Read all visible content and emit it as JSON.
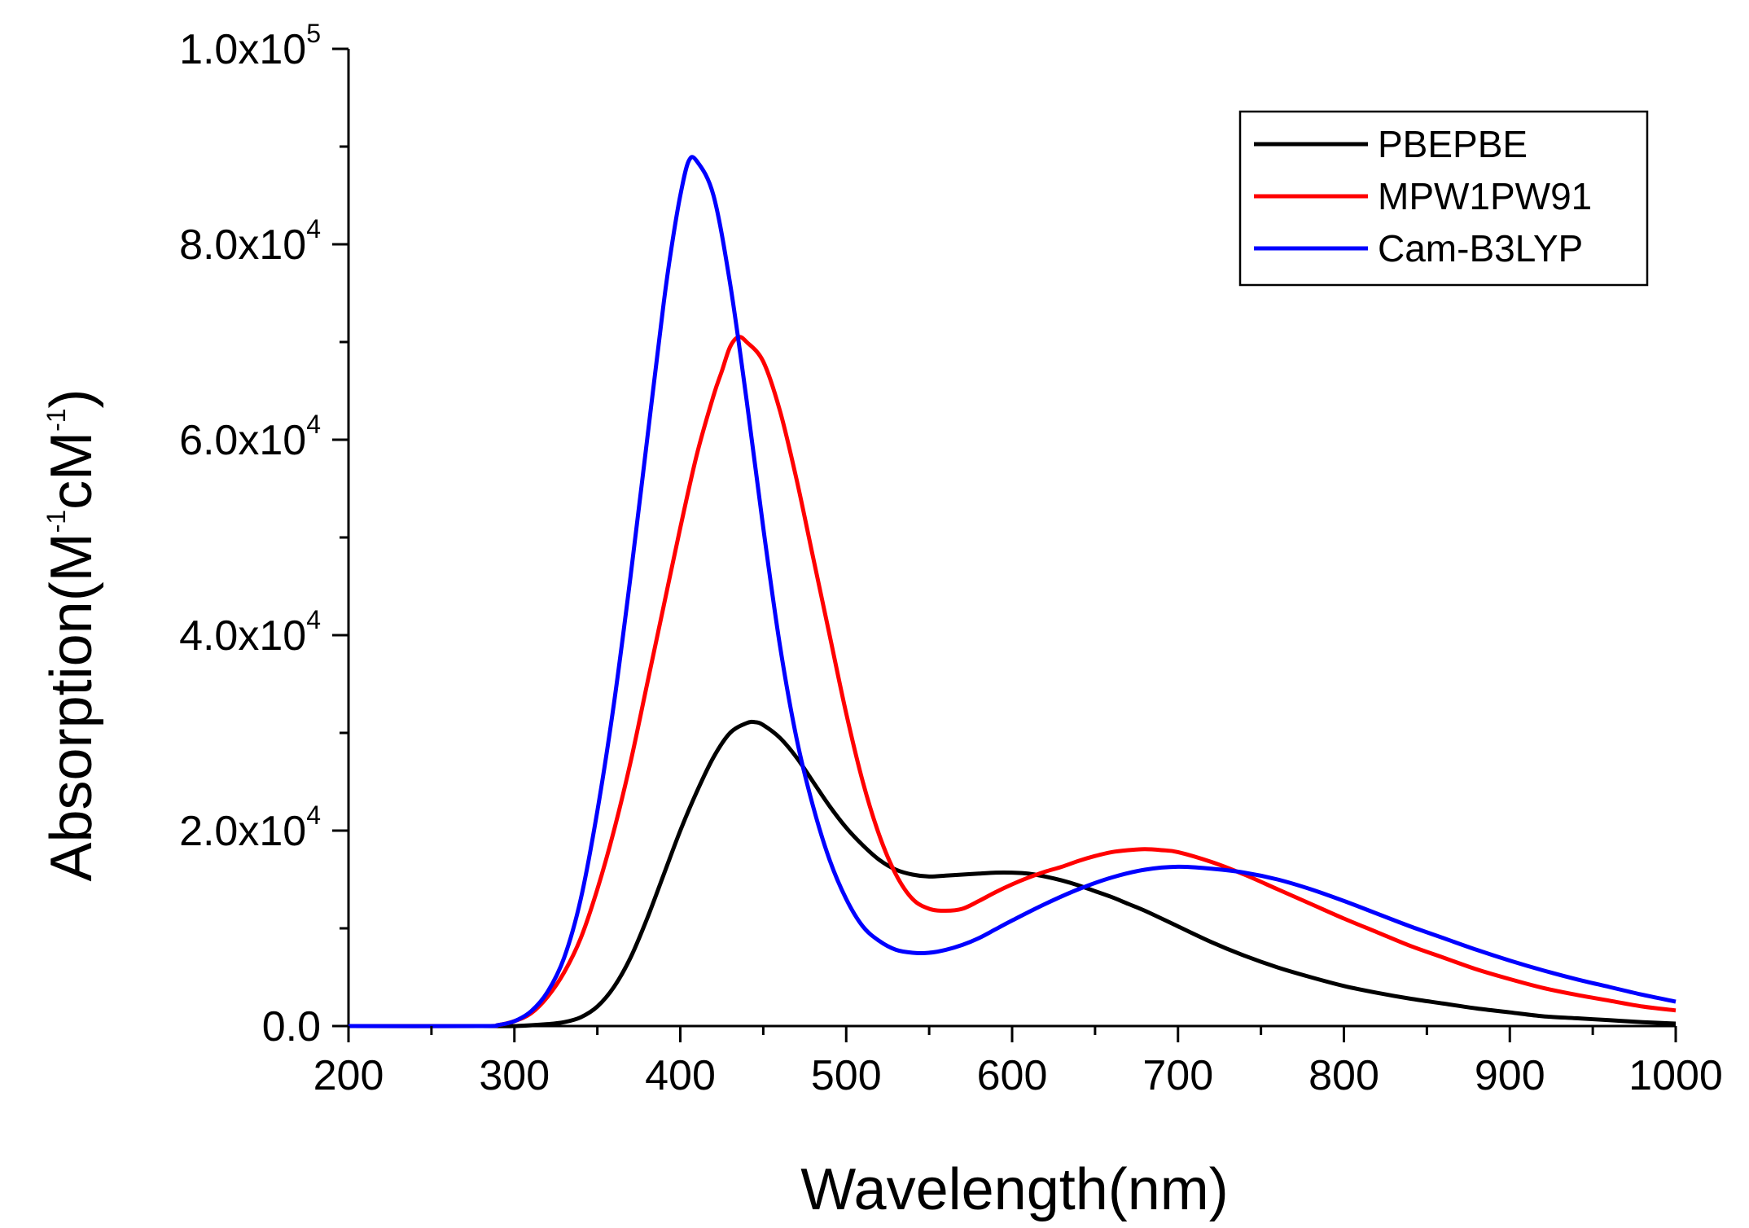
{
  "chart_data": {
    "type": "line",
    "title": "",
    "xlabel": "Wavelength(nm)",
    "ylabel": {
      "base": "Absorption(M",
      "sup1": "-1",
      "mid": "cM",
      "sup2": "-1",
      "end": ")"
    },
    "xlim": [
      200,
      1000
    ],
    "ylim": [
      0,
      100000
    ],
    "x_ticks": [
      "200",
      "300",
      "400",
      "500",
      "600",
      "700",
      "800",
      "900",
      "1000"
    ],
    "y_ticks": [
      {
        "mantissa": "0.0",
        "exp": ""
      },
      {
        "mantissa": "2.0x10",
        "exp": "4"
      },
      {
        "mantissa": "4.0x10",
        "exp": "4"
      },
      {
        "mantissa": "6.0x10",
        "exp": "4"
      },
      {
        "mantissa": "8.0x10",
        "exp": "4"
      },
      {
        "mantissa": "1.0x10",
        "exp": "5"
      }
    ],
    "legend_position": "top-right",
    "series": [
      {
        "name": "PBEPBE",
        "color": "#000000",
        "x": [
          200,
          280,
          300,
          320,
          330,
          340,
          350,
          360,
          370,
          380,
          390,
          400,
          410,
          420,
          430,
          440,
          445,
          450,
          460,
          470,
          480,
          490,
          500,
          510,
          520,
          530,
          540,
          550,
          560,
          570,
          580,
          590,
          600,
          610,
          620,
          630,
          640,
          650,
          660,
          670,
          680,
          700,
          720,
          740,
          760,
          780,
          800,
          820,
          840,
          860,
          880,
          900,
          920,
          940,
          960,
          980,
          1000
        ],
        "values": [
          0,
          0,
          0,
          200,
          400,
          900,
          2000,
          4000,
          7000,
          11000,
          15500,
          20000,
          24000,
          27500,
          30000,
          31000,
          31100,
          30800,
          29500,
          27500,
          25000,
          22500,
          20300,
          18500,
          17000,
          16000,
          15500,
          15300,
          15400,
          15500,
          15600,
          15700,
          15700,
          15600,
          15300,
          14900,
          14400,
          13800,
          13200,
          12500,
          11800,
          10200,
          8600,
          7200,
          6000,
          5000,
          4100,
          3400,
          2800,
          2300,
          1800,
          1400,
          1000,
          800,
          600,
          400,
          250
        ]
      },
      {
        "name": "MPW1PW91",
        "color": "#ff0000",
        "x": [
          200,
          280,
          290,
          300,
          310,
          320,
          330,
          340,
          350,
          360,
          370,
          380,
          390,
          400,
          410,
          420,
          425,
          430,
          435,
          440,
          450,
          460,
          470,
          480,
          490,
          500,
          510,
          520,
          530,
          540,
          550,
          560,
          570,
          580,
          590,
          600,
          610,
          620,
          630,
          640,
          650,
          660,
          670,
          680,
          690,
          700,
          720,
          740,
          760,
          780,
          800,
          820,
          840,
          860,
          880,
          900,
          920,
          940,
          960,
          980,
          1000
        ],
        "values": [
          0,
          0,
          100,
          500,
          1300,
          3000,
          5500,
          9000,
          14000,
          20000,
          27000,
          35000,
          43000,
          51000,
          58500,
          64500,
          67000,
          69500,
          70500,
          70000,
          68000,
          63000,
          56000,
          48000,
          40000,
          32000,
          25000,
          19500,
          15500,
          13000,
          12000,
          11800,
          12000,
          12800,
          13700,
          14500,
          15200,
          15800,
          16300,
          16900,
          17400,
          17800,
          18000,
          18100,
          18000,
          17800,
          16800,
          15500,
          14000,
          12500,
          11000,
          9600,
          8200,
          7000,
          5800,
          4800,
          3900,
          3200,
          2600,
          2000,
          1600
        ]
      },
      {
        "name": "Cam-B3LYP",
        "color": "#0000ff",
        "x": [
          200,
          280,
          290,
          300,
          310,
          320,
          330,
          340,
          350,
          360,
          370,
          380,
          390,
          395,
          400,
          405,
          410,
          420,
          430,
          440,
          450,
          460,
          470,
          480,
          490,
          500,
          510,
          520,
          530,
          540,
          550,
          560,
          570,
          580,
          590,
          600,
          620,
          640,
          660,
          680,
          700,
          720,
          740,
          760,
          780,
          800,
          820,
          840,
          860,
          880,
          900,
          920,
          940,
          960,
          980,
          1000
        ],
        "values": [
          0,
          0,
          100,
          500,
          1500,
          3500,
          7000,
          13000,
          22000,
          33000,
          46000,
          60000,
          74000,
          80000,
          85000,
          88500,
          88500,
          85000,
          76000,
          64000,
          51000,
          39000,
          29500,
          22500,
          17000,
          13000,
          10200,
          8700,
          7800,
          7500,
          7500,
          7800,
          8300,
          9000,
          9900,
          10800,
          12500,
          14000,
          15200,
          16000,
          16300,
          16100,
          15700,
          15000,
          14000,
          12800,
          11500,
          10200,
          9000,
          7800,
          6700,
          5700,
          4800,
          4000,
          3200,
          2500
        ]
      }
    ]
  }
}
